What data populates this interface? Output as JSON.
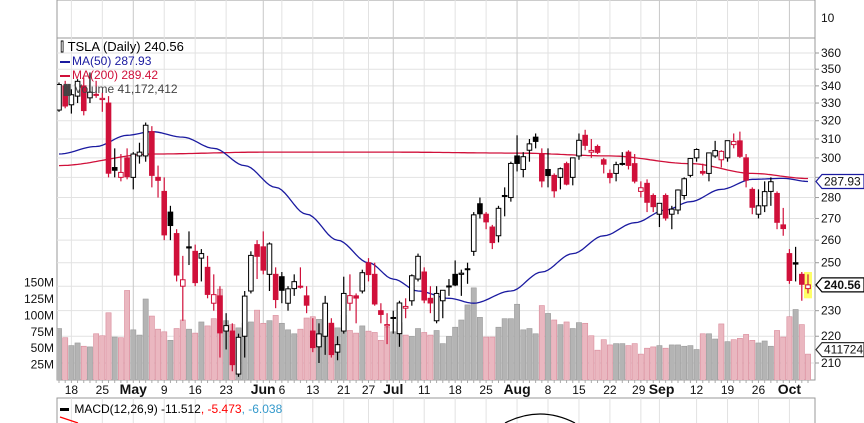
{
  "legend": {
    "title": "TSLA (Daily) 240.56",
    "ma50": "MA(50) 287.93",
    "ma200": "MA(200) 289.42",
    "volume": "Volume 41,172,412"
  },
  "macd": {
    "label": "MACD(12,26,9) -11.512",
    "signal": ", -5.473",
    "hist": ", -6.038"
  },
  "top_panel": {
    "label": "10"
  },
  "tags": {
    "ma50": "287.93",
    "last": "240.56",
    "volume": "411724"
  },
  "colors": {
    "up": "#000000",
    "down": "#d0103a",
    "ma50": "#1a1aa0",
    "ma200": "#d0103a",
    "vol_up": "#b4b4b4",
    "vol_down": "#eab7c0",
    "macd_signal": "#ff0000",
    "macd_hist": "#3399cc",
    "highlight": "#ffff66"
  },
  "chart_data": {
    "type": "candlestick",
    "title": "TSLA (Daily)",
    "price_scale": "log",
    "ylim": [
      210,
      360
    ],
    "y_ticks": [
      360,
      350,
      340,
      330,
      320,
      310,
      300,
      290,
      280,
      270,
      260,
      250,
      240,
      230,
      220,
      210
    ],
    "y_tick_labels": [
      "360",
      "350",
      "340",
      "330",
      "320",
      "310",
      "300",
      "",
      "280",
      "270",
      "260",
      "250",
      "",
      "230",
      "220",
      "210"
    ],
    "volume_ticks": [
      "150M",
      "125M",
      "100M",
      "75M",
      "50M",
      "25M"
    ],
    "volume_tick_values": [
      150,
      125,
      100,
      75,
      50,
      25
    ],
    "x_ticks": [
      {
        "i": 2,
        "label": "18"
      },
      {
        "i": 7,
        "label": "25"
      },
      {
        "i": 12,
        "label": "May",
        "bold": true
      },
      {
        "i": 17,
        "label": "9"
      },
      {
        "i": 22,
        "label": "16"
      },
      {
        "i": 27,
        "label": "23"
      },
      {
        "i": 33,
        "label": "Jun",
        "bold": true
      },
      {
        "i": 36,
        "label": "6"
      },
      {
        "i": 41,
        "label": "13"
      },
      {
        "i": 46,
        "label": "21"
      },
      {
        "i": 50,
        "label": "27"
      },
      {
        "i": 54,
        "label": "Jul",
        "bold": true
      },
      {
        "i": 59,
        "label": "11"
      },
      {
        "i": 64,
        "label": "18"
      },
      {
        "i": 69,
        "label": "25"
      },
      {
        "i": 74,
        "label": "Aug",
        "bold": true
      },
      {
        "i": 79,
        "label": "8"
      },
      {
        "i": 84,
        "label": "15"
      },
      {
        "i": 89,
        "label": "22"
      },
      {
        "i": 94,
        "label": "29"
      },
      {
        "i": 97,
        "label": "Sep",
        "bold": true
      },
      {
        "i": 103,
        "label": "12"
      },
      {
        "i": 108,
        "label": "19"
      },
      {
        "i": 113,
        "label": "26"
      },
      {
        "i": 118,
        "label": "Oct",
        "bold": true
      }
    ],
    "candles_ohlcv_columns": [
      "open",
      "high",
      "low",
      "close",
      "volume_millions"
    ],
    "candles": [
      [
        326,
        342,
        325,
        340.8,
        80
      ],
      [
        340,
        343,
        327,
        328.3,
        66
      ],
      [
        329,
        338,
        324,
        334.8,
        54
      ],
      [
        334,
        344,
        330,
        342.7,
        58
      ],
      [
        340,
        345,
        323,
        325.7,
        53
      ],
      [
        333,
        348,
        330,
        336.3,
        52
      ],
      [
        335,
        343,
        333,
        335.0,
        72
      ],
      [
        332,
        336,
        325,
        332.7,
        69
      ],
      [
        330,
        334,
        290,
        292.1,
        104
      ],
      [
        295,
        305,
        290,
        293.6,
        67
      ],
      [
        290,
        302,
        288,
        292.5,
        66
      ],
      [
        300,
        305,
        289,
        290.3,
        138
      ],
      [
        290,
        303,
        284,
        302.0,
        78
      ],
      [
        301,
        308,
        297,
        303.0,
        70
      ],
      [
        301,
        319,
        298,
        317.5,
        125
      ],
      [
        314,
        317,
        285,
        291.0,
        99
      ],
      [
        290,
        296,
        280,
        288.5,
        79
      ],
      [
        283,
        290,
        260,
        262.4,
        75
      ],
      [
        273,
        276,
        260,
        266.7,
        62
      ],
      [
        263,
        265,
        242,
        244.7,
        80
      ],
      [
        240,
        253,
        226,
        242.7,
        93
      ],
      [
        257,
        264,
        249,
        256.5,
        79
      ],
      [
        255,
        258,
        240,
        241.5,
        73
      ],
      [
        252,
        256,
        242,
        254.0,
        90
      ],
      [
        248,
        253,
        235,
        236.6,
        84
      ],
      [
        233,
        245,
        230,
        236.5,
        95
      ],
      [
        236,
        240,
        212,
        221.3,
        140
      ],
      [
        222,
        229,
        215,
        224.1,
        92
      ],
      [
        222,
        225,
        207,
        209.4,
        86
      ],
      [
        206,
        221,
        205,
        219.6,
        81
      ],
      [
        220,
        238,
        212,
        235.9,
        88
      ],
      [
        238,
        255,
        237,
        253.2,
        90
      ],
      [
        258,
        260,
        243,
        252.8,
        108
      ],
      [
        257,
        264,
        245,
        246.8,
        88
      ],
      [
        245,
        259,
        238,
        258.3,
        92
      ],
      [
        245,
        248,
        231,
        234.5,
        100
      ],
      [
        244,
        246,
        233,
        238.3,
        88
      ],
      [
        233,
        240,
        230,
        238.9,
        78
      ],
      [
        239,
        245,
        236,
        241.9,
        72
      ],
      [
        240,
        248,
        239,
        239.7,
        79
      ],
      [
        236,
        240,
        229,
        232.2,
        96
      ],
      [
        222,
        227,
        214,
        215.7,
        98
      ],
      [
        216,
        225,
        210,
        220.9,
        94
      ],
      [
        220,
        236,
        213,
        233.0,
        117
      ],
      [
        225,
        227,
        212,
        213.1,
        84
      ],
      [
        214,
        220,
        211,
        216.8,
        81
      ],
      [
        222,
        244,
        221,
        237.0,
        100
      ],
      [
        233,
        245,
        230,
        236.1,
        77
      ],
      [
        236,
        237,
        225,
        235.1,
        73
      ],
      [
        238,
        247,
        237,
        245.7,
        84
      ],
      [
        250,
        252,
        242,
        244.9,
        76
      ],
      [
        245,
        250,
        232,
        232.7,
        74
      ],
      [
        230,
        233,
        225,
        228.5,
        62
      ],
      [
        224,
        229,
        217,
        224.5,
        82
      ],
      [
        227,
        230,
        221,
        227.3,
        75
      ],
      [
        221,
        234,
        216,
        233.1,
        89
      ],
      [
        231,
        235,
        227,
        231.7,
        70
      ],
      [
        234,
        245,
        232,
        244.4,
        68
      ],
      [
        243,
        254,
        242,
        252.8,
        80
      ],
      [
        246,
        248,
        233,
        234.3,
        74
      ],
      [
        235,
        240,
        229,
        233.1,
        70
      ],
      [
        226,
        240,
        225,
        237.0,
        77
      ],
      [
        234,
        238,
        227,
        238.3,
        57
      ],
      [
        240,
        243,
        236,
        240.1,
        68
      ],
      [
        245,
        251,
        240,
        240.5,
        82
      ],
      [
        245,
        247,
        236,
        245.5,
        93
      ],
      [
        247,
        250,
        241,
        247.4,
        116
      ],
      [
        255,
        273,
        253,
        271.7,
        142
      ],
      [
        277,
        280,
        270,
        272.2,
        97
      ],
      [
        272,
        273,
        265,
        268.4,
        67
      ],
      [
        266,
        267,
        256,
        258.9,
        67
      ],
      [
        262,
        276,
        259,
        274.8,
        82
      ],
      [
        281,
        285,
        271,
        280.9,
        95
      ],
      [
        280,
        298,
        278,
        297.1,
        95
      ],
      [
        301,
        312,
        293,
        297.1,
        117
      ],
      [
        294,
        303,
        290,
        300.6,
        78
      ],
      [
        304,
        310,
        298,
        307.4,
        80
      ],
      [
        311,
        313,
        305,
        308.7,
        72
      ],
      [
        302,
        305,
        285,
        288.2,
        115
      ],
      [
        294,
        305,
        285,
        290.9,
        103
      ],
      [
        291,
        292,
        280,
        283.3,
        93
      ],
      [
        290,
        295,
        284,
        294.4,
        86
      ],
      [
        297,
        298,
        286,
        286.6,
        90
      ],
      [
        290,
        300,
        286,
        300.0,
        80
      ],
      [
        301,
        313,
        299,
        309.3,
        89
      ],
      [
        312,
        315,
        304,
        306.6,
        88
      ],
      [
        303,
        310,
        300,
        303.9,
        69
      ],
      [
        306,
        307,
        302,
        302.9,
        47
      ],
      [
        299,
        300,
        292,
        296.7,
        63
      ],
      [
        292,
        294,
        287,
        289.9,
        55
      ],
      [
        292,
        298,
        288,
        296.5,
        57
      ],
      [
        297,
        303,
        296,
        297.1,
        57
      ],
      [
        303,
        304,
        294,
        296.1,
        54
      ],
      [
        297,
        302,
        287,
        288.1,
        57
      ],
      [
        283,
        288,
        280,
        284.8,
        41
      ],
      [
        287,
        289,
        273,
        277.7,
        50
      ],
      [
        281,
        282,
        273,
        275.6,
        52
      ],
      [
        272,
        277,
        266,
        277.2,
        54
      ],
      [
        281,
        282,
        269,
        270.2,
        50
      ],
      [
        272,
        276,
        265,
        274.4,
        55
      ],
      [
        274,
        284,
        272,
        283.7,
        55
      ],
      [
        281,
        290,
        279,
        289.3,
        53
      ],
      [
        291,
        299,
        290,
        299.7,
        54
      ],
      [
        300,
        305,
        298,
        304.4,
        48
      ],
      [
        293,
        297,
        291,
        292.1,
        72
      ],
      [
        292,
        302,
        288,
        302.6,
        72
      ],
      [
        301,
        309,
        300,
        303.8,
        64
      ],
      [
        299,
        304,
        295,
        303.4,
        87
      ],
      [
        300,
        309,
        298,
        309.1,
        60
      ],
      [
        307,
        313,
        305,
        308.7,
        63
      ],
      [
        309,
        314,
        300,
        300.8,
        65
      ],
      [
        300,
        302,
        285,
        288.6,
        71
      ],
      [
        284,
        285,
        272,
        275.3,
        62
      ],
      [
        272,
        284,
        270,
        276.0,
        58
      ],
      [
        276,
        288,
        273,
        282.9,
        61
      ],
      [
        283,
        290,
        276,
        287.8,
        53
      ],
      [
        282,
        283,
        265,
        268.2,
        77
      ],
      [
        267,
        275,
        262,
        265.3,
        67
      ],
      [
        254,
        256,
        241,
        242.4,
        98
      ],
      [
        250,
        257,
        242,
        249.4,
        109
      ],
      [
        245,
        246,
        234,
        240.8,
        86
      ],
      [
        239,
        245,
        237,
        240.56,
        41
      ]
    ],
    "ma50_points": [
      [
        0,
        302
      ],
      [
        6,
        306
      ],
      [
        11,
        312
      ],
      [
        15,
        314
      ],
      [
        20,
        311
      ],
      [
        25,
        305
      ],
      [
        30,
        296
      ],
      [
        35,
        285
      ],
      [
        40,
        272
      ],
      [
        45,
        260
      ],
      [
        50,
        250
      ],
      [
        54,
        243
      ],
      [
        58,
        238
      ],
      [
        63,
        235
      ],
      [
        67,
        233
      ],
      [
        73,
        238
      ],
      [
        78,
        246
      ],
      [
        83,
        254
      ],
      [
        88,
        262
      ],
      [
        93,
        268
      ],
      [
        98,
        274
      ],
      [
        102,
        278
      ],
      [
        107,
        284
      ],
      [
        112,
        289
      ],
      [
        117,
        289.5
      ],
      [
        121,
        287.93
      ]
    ],
    "ma200_points": [
      [
        0,
        296
      ],
      [
        15,
        302
      ],
      [
        33,
        303
      ],
      [
        54,
        303
      ],
      [
        74,
        302.5
      ],
      [
        89,
        301
      ],
      [
        102,
        297
      ],
      [
        112,
        292
      ],
      [
        121,
        289.42
      ]
    ]
  }
}
